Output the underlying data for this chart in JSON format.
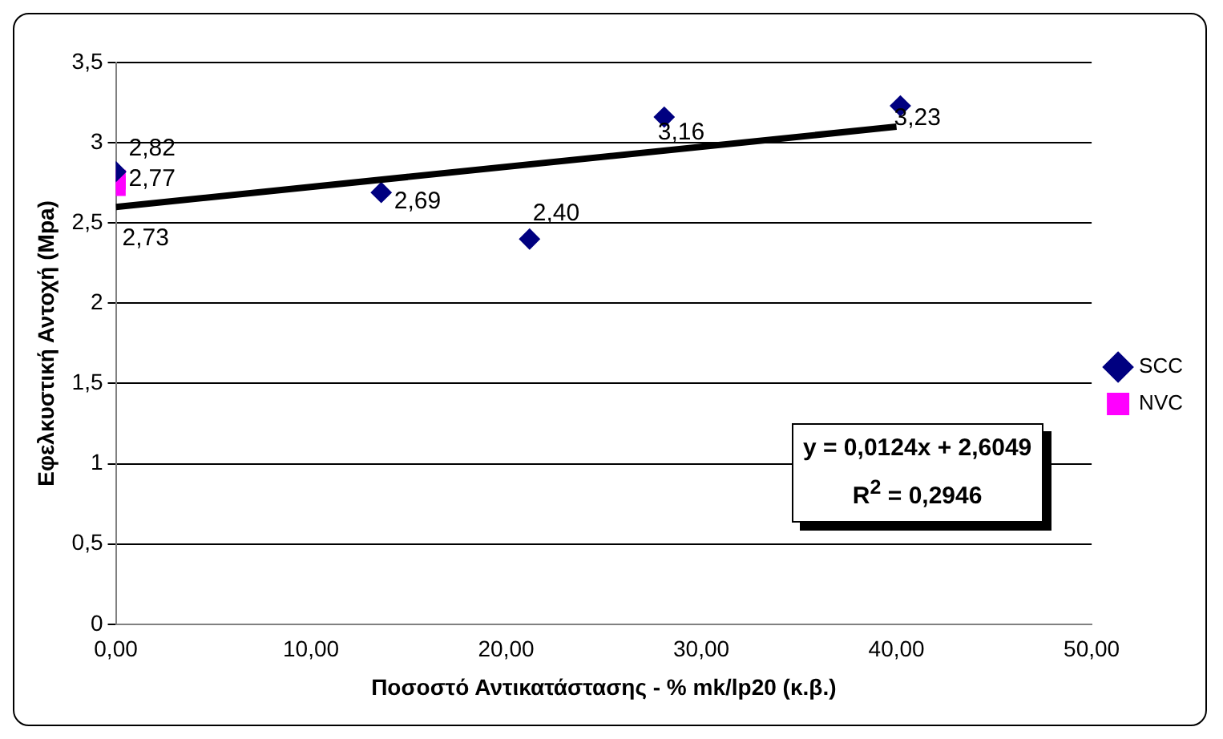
{
  "chart_data": {
    "type": "scatter",
    "xlabel": "Ποσοστό Αντικατάστασης - % mk/lp20 (κ.β.)",
    "ylabel": "Εφελκυστική Αντοχή (Mpa)",
    "series": [
      {
        "name": "SCC",
        "color": "#000080",
        "marker": "diamond",
        "x": [
          0,
          13.6,
          21.2,
          28.1,
          40.2
        ],
        "values": [
          2.82,
          2.69,
          2.4,
          3.16,
          3.23
        ],
        "value_labels": [
          "2,82",
          "2,69",
          "2,40",
          "3,16",
          "3,23"
        ]
      },
      {
        "name": "NVC",
        "color": "#ff00ff",
        "marker": "square",
        "x": [
          0,
          0
        ],
        "values": [
          2.77,
          2.73
        ],
        "value_labels": [
          "2,77",
          "2,73"
        ]
      },
      {
        "type": "line",
        "color": "#000000",
        "marker": "none",
        "x": [
          0,
          40
        ],
        "values": [
          2.6,
          3.1
        ]
      }
    ],
    "xlim": [
      0,
      50
    ],
    "xticks": [
      {
        "value": 0,
        "label": "0,00"
      },
      {
        "value": 10,
        "label": "10,00"
      },
      {
        "value": 20,
        "label": "20,00"
      },
      {
        "value": 30,
        "label": "30,00"
      },
      {
        "value": 40,
        "label": "40,00"
      },
      {
        "value": 50,
        "label": "50,00"
      }
    ],
    "ylim": [
      0,
      3.5
    ],
    "yticks": [
      0,
      {
        "value": 0.5,
        "label": "0,5"
      },
      1,
      {
        "value": 1.5,
        "label": "1,5"
      },
      2,
      {
        "value": 2.5,
        "label": "2,5"
      },
      3,
      {
        "value": 3.5,
        "label": "3,5"
      }
    ],
    "grid": "y",
    "legend": "right",
    "annotations": [
      "y = 0,0124x + 2,6049",
      "R$^{2}$ = 0,2946"
    ]
  }
}
